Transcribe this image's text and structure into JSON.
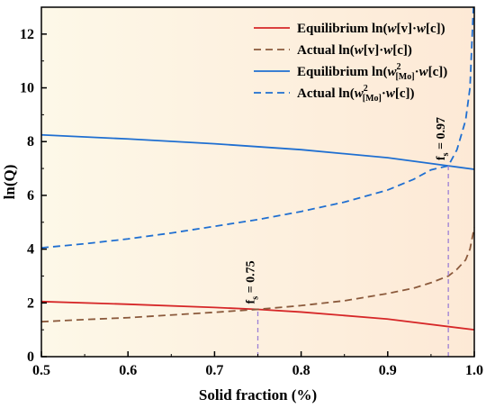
{
  "chart_data": {
    "type": "line",
    "title": "",
    "xlabel": "Solid fraction (%)",
    "ylabel": "ln(Q)",
    "xlim": [
      0.5,
      1.0
    ],
    "ylim": [
      0,
      13
    ],
    "xticks": [
      "0.5",
      "0.6",
      "0.7",
      "0.8",
      "0.9",
      "1.0"
    ],
    "yticks": [
      "0",
      "2",
      "4",
      "6",
      "8",
      "10",
      "12"
    ],
    "legend_position": "top-right",
    "background": "gradient from pale yellow (left) to light peach (right)",
    "series": [
      {
        "name_parts": [
          "Equilibrium ln(",
          "w",
          "[v]·",
          "w",
          "[c])"
        ],
        "color": "#d62728",
        "style": "solid",
        "x": [
          0.5,
          0.6,
          0.7,
          0.75,
          0.8,
          0.9,
          1.0
        ],
        "y": [
          2.05,
          1.95,
          1.83,
          1.76,
          1.66,
          1.4,
          1.0
        ]
      },
      {
        "name_parts": [
          "Actual ln(",
          "w",
          "[v]·",
          "w",
          "[c])"
        ],
        "color": "#8b5a3c",
        "style": "dashed",
        "x": [
          0.5,
          0.55,
          0.6,
          0.65,
          0.7,
          0.75,
          0.8,
          0.85,
          0.9,
          0.93,
          0.95,
          0.97,
          0.98,
          0.99,
          0.995,
          1.0
        ],
        "y": [
          1.3,
          1.38,
          1.45,
          1.55,
          1.65,
          1.76,
          1.9,
          2.08,
          2.35,
          2.55,
          2.75,
          3.0,
          3.25,
          3.6,
          4.0,
          4.8
        ]
      },
      {
        "name_parts": [
          "Equilibrium ln(",
          "w",
          "[Mo]",
          "2",
          "·",
          "w",
          "[c])"
        ],
        "color": "#1f6fd1",
        "style": "solid",
        "x": [
          0.5,
          0.6,
          0.7,
          0.8,
          0.9,
          0.97,
          1.0
        ],
        "y": [
          8.25,
          8.1,
          7.92,
          7.7,
          7.4,
          7.1,
          6.97
        ]
      },
      {
        "name_parts": [
          "Actual ln(",
          "w",
          "[Mo]",
          "2",
          "·",
          "w",
          "[c])"
        ],
        "color": "#1f6fd1",
        "style": "dashed",
        "x": [
          0.5,
          0.55,
          0.6,
          0.65,
          0.7,
          0.75,
          0.8,
          0.85,
          0.9,
          0.93,
          0.95,
          0.97,
          0.98,
          0.99,
          0.995,
          0.999
        ],
        "y": [
          4.05,
          4.2,
          4.38,
          4.6,
          4.85,
          5.1,
          5.4,
          5.75,
          6.2,
          6.6,
          6.95,
          7.1,
          7.7,
          8.8,
          10.0,
          13.0
        ]
      }
    ],
    "annotations": [
      {
        "label_main": "f",
        "label_sub": "s",
        "label_tail": " = 0.75",
        "x": 0.75,
        "y_top": 1.76,
        "color": "#9b7fd6"
      },
      {
        "label_main": "f",
        "label_sub": "s",
        "label_tail": " = 0.97",
        "x": 0.97,
        "y_top": 7.1,
        "color": "#9b7fd6"
      }
    ]
  }
}
